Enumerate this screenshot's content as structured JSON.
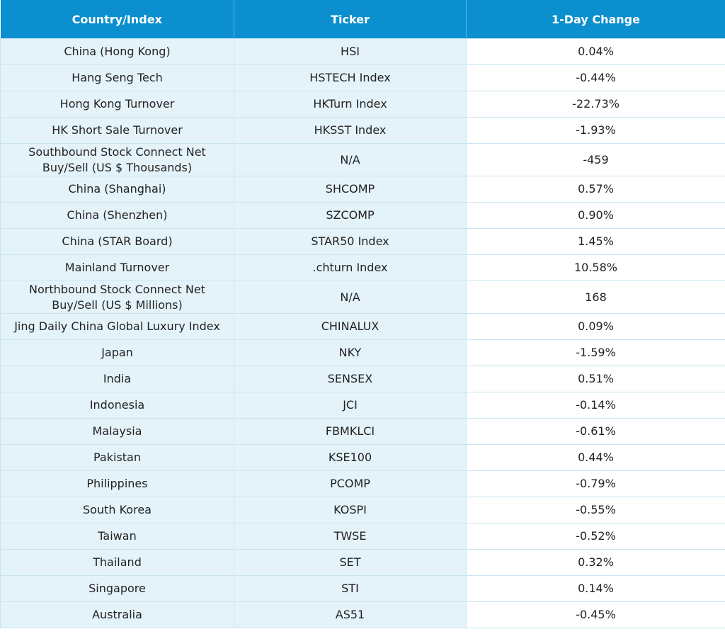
{
  "table": {
    "header": [
      "Country/Index",
      "Ticker",
      "1-Day Change"
    ],
    "rows": [
      [
        "China (Hong Kong)",
        "HSI",
        "0.04%"
      ],
      [
        "Hang Seng Tech",
        "HSTECH Index",
        "-0.44%"
      ],
      [
        "Hong Kong Turnover",
        "HKTurn Index",
        "-22.73%"
      ],
      [
        "HK Short Sale Turnover",
        "HKSST Index",
        "-1.93%"
      ],
      [
        "Southbound Stock Connect Net Buy/Sell (US $ Thousands)",
        "N/A",
        "-459"
      ],
      [
        "China (Shanghai)",
        "SHCOMP",
        "0.57%"
      ],
      [
        "China (Shenzhen)",
        "SZCOMP",
        "0.90%"
      ],
      [
        "China (STAR Board)",
        "STAR50 Index",
        "1.45%"
      ],
      [
        "Mainland Turnover",
        ".chturn Index",
        "10.58%"
      ],
      [
        "Northbound Stock Connect Net Buy/Sell (US $ Millions)",
        "N/A",
        "168"
      ],
      [
        "Jing Daily China Global Luxury Index",
        "CHINALUX",
        "0.09%"
      ],
      [
        "Japan",
        "NKY",
        "-1.59%"
      ],
      [
        "India",
        "SENSEX",
        "0.51%"
      ],
      [
        "Indonesia",
        "JCI",
        "-0.14%"
      ],
      [
        "Malaysia",
        "FBMKLCI",
        "-0.61%"
      ],
      [
        "Pakistan",
        "KSE100",
        "0.44%"
      ],
      [
        "Philippines",
        "PCOMP",
        "-0.79%"
      ],
      [
        "South Korea",
        "KOSPI",
        "-0.55%"
      ],
      [
        "Taiwan",
        "TWSE",
        "-0.52%"
      ],
      [
        "Thailand",
        "SET",
        "0.32%"
      ],
      [
        "Singapore",
        "STI",
        "0.14%"
      ],
      [
        "Australia",
        "AS51",
        "-0.45%"
      ]
    ]
  }
}
